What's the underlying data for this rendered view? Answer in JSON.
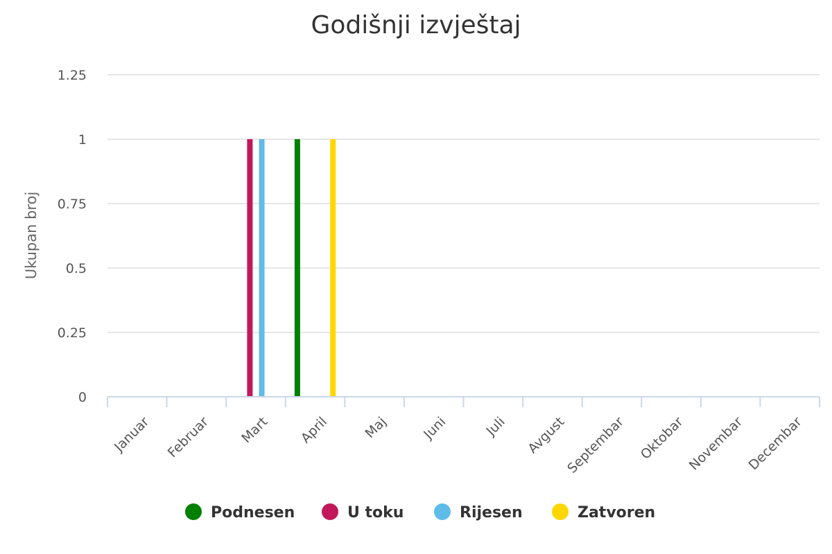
{
  "chart_data": {
    "type": "bar",
    "title": "Godišnji izvještaj",
    "ylabel": "Ukupan broj",
    "xlabel": "",
    "ylim": [
      0,
      1.25
    ],
    "yticks": [
      "0",
      "0.25",
      "0.5",
      "0.75",
      "1",
      "1.25"
    ],
    "grid": true,
    "legend_position": "bottom",
    "categories": [
      "Januar",
      "Februar",
      "Mart",
      "April",
      "Maj",
      "Juni",
      "Juli",
      "Avgust",
      "Septembar",
      "Oktobar",
      "Novembar",
      "Decembar"
    ],
    "series": [
      {
        "name": "Podnesen",
        "color": "#008000",
        "values": [
          0,
          0,
          0,
          1,
          0,
          0,
          0,
          0,
          0,
          0,
          0,
          0
        ]
      },
      {
        "name": "U toku",
        "color": "#c2185b",
        "values": [
          0,
          0,
          1,
          0,
          0,
          0,
          0,
          0,
          0,
          0,
          0,
          0
        ]
      },
      {
        "name": "Rijesen",
        "color": "#5fbce8",
        "values": [
          0,
          0,
          1,
          0,
          0,
          0,
          0,
          0,
          0,
          0,
          0,
          0
        ]
      },
      {
        "name": "Zatvoren",
        "color": "#ffd700",
        "values": [
          0,
          0,
          0,
          1,
          0,
          0,
          0,
          0,
          0,
          0,
          0,
          0
        ]
      }
    ]
  }
}
